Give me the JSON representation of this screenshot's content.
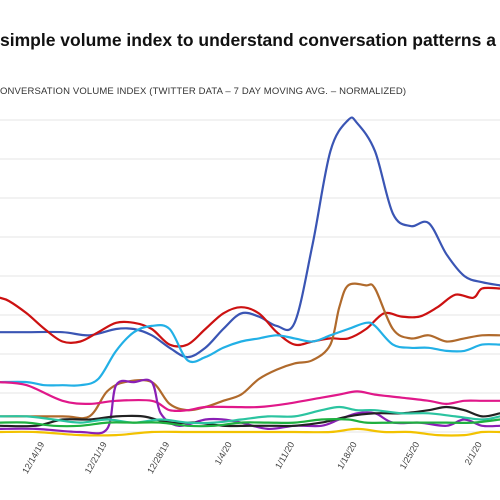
{
  "header": {
    "title": "simple volume index to understand conversation patterns a"
  },
  "chart_data": {
    "type": "line",
    "title": "simple volume index to understand conversation patterns a",
    "subtitle": "ONVERSATION VOLUME INDEX (TWITTER DATA – 7 DAY MOVING AVG. – NORMALIZED)",
    "xlabel": "",
    "ylabel": "",
    "x_start": "12/9/19",
    "x_end": "2/3/20",
    "x_ticks": [
      "12/14/19",
      "12/21/19",
      "12/28/19",
      "1/4/20",
      "1/11/20",
      "1/18/20",
      "1/25/20",
      "2/1/20"
    ],
    "ylim": [
      0,
      100
    ],
    "grid": "horizontal",
    "series": [
      {
        "color": "#3a55b4",
        "points": [
          [
            "12/9/19",
            32
          ],
          [
            "12/12/19",
            32
          ],
          [
            "12/16/19",
            32
          ],
          [
            "12/19/19",
            31
          ],
          [
            "12/22/19",
            33
          ],
          [
            "12/24/19",
            33
          ],
          [
            "12/26/19",
            31
          ],
          [
            "12/28/19",
            27
          ],
          [
            "12/30/19",
            24
          ],
          [
            "1/1/20",
            27
          ],
          [
            "1/3/20",
            33
          ],
          [
            "1/5/20",
            38
          ],
          [
            "1/7/20",
            37
          ],
          [
            "1/9/20",
            34
          ],
          [
            "1/11/20",
            35
          ],
          [
            "1/13/20",
            60
          ],
          [
            "1/15/20",
            90
          ],
          [
            "1/17/20",
            100
          ],
          [
            "1/18/20",
            99
          ],
          [
            "1/20/20",
            90
          ],
          [
            "1/22/20",
            70
          ],
          [
            "1/24/20",
            66
          ],
          [
            "1/26/20",
            67
          ],
          [
            "1/28/20",
            57
          ],
          [
            "1/30/20",
            50
          ],
          [
            "2/1/20",
            48
          ],
          [
            "2/3/20",
            47
          ]
        ]
      },
      {
        "color": "#cc1111",
        "points": [
          [
            "12/9/19",
            43
          ],
          [
            "12/10/19",
            42
          ],
          [
            "12/12/19",
            38
          ],
          [
            "12/14/19",
            33
          ],
          [
            "12/16/19",
            29
          ],
          [
            "12/18/19",
            29
          ],
          [
            "12/20/19",
            32
          ],
          [
            "12/22/19",
            35
          ],
          [
            "12/24/19",
            35
          ],
          [
            "12/26/19",
            33
          ],
          [
            "12/28/19",
            28
          ],
          [
            "12/30/19",
            28
          ],
          [
            "1/1/20",
            33
          ],
          [
            "1/3/20",
            38
          ],
          [
            "1/5/20",
            40
          ],
          [
            "1/7/20",
            38
          ],
          [
            "1/9/20",
            32
          ],
          [
            "1/11/20",
            28
          ],
          [
            "1/13/20",
            29
          ],
          [
            "1/15/20",
            30
          ],
          [
            "1/17/20",
            30
          ],
          [
            "1/19/20",
            33
          ],
          [
            "1/21/20",
            38
          ],
          [
            "1/23/20",
            37
          ],
          [
            "1/25/20",
            37
          ],
          [
            "1/27/20",
            40
          ],
          [
            "1/29/20",
            44
          ],
          [
            "1/31/20",
            43
          ],
          [
            "2/1/20",
            46
          ],
          [
            "2/3/20",
            46
          ]
        ]
      },
      {
        "color": "#b06a2c",
        "points": [
          [
            "12/9/19",
            5
          ],
          [
            "12/16/19",
            5
          ],
          [
            "12/19/19",
            5
          ],
          [
            "12/21/19",
            13
          ],
          [
            "12/23/19",
            16
          ],
          [
            "12/26/19",
            16
          ],
          [
            "12/28/19",
            9
          ],
          [
            "12/30/19",
            7
          ],
          [
            "1/1/20",
            8
          ],
          [
            "1/3/20",
            10
          ],
          [
            "1/5/20",
            12
          ],
          [
            "1/7/20",
            17
          ],
          [
            "1/9/20",
            20
          ],
          [
            "1/11/20",
            22
          ],
          [
            "1/13/20",
            23
          ],
          [
            "1/15/20",
            28
          ],
          [
            "1/16/20",
            40
          ],
          [
            "1/17/20",
            47
          ],
          [
            "1/19/20",
            47
          ],
          [
            "1/20/20",
            46
          ],
          [
            "1/22/20",
            33
          ],
          [
            "1/24/20",
            30
          ],
          [
            "1/26/20",
            31
          ],
          [
            "1/28/20",
            29
          ],
          [
            "1/30/20",
            30
          ],
          [
            "2/1/20",
            31
          ],
          [
            "2/3/20",
            31
          ]
        ]
      },
      {
        "color": "#22b0e6",
        "points": [
          [
            "12/9/19",
            16
          ],
          [
            "12/12/19",
            16
          ],
          [
            "12/14/19",
            15
          ],
          [
            "12/16/19",
            15
          ],
          [
            "12/18/19",
            15
          ],
          [
            "12/20/19",
            17
          ],
          [
            "12/22/19",
            26
          ],
          [
            "12/24/19",
            32
          ],
          [
            "12/26/19",
            34
          ],
          [
            "12/28/19",
            33
          ],
          [
            "12/30/19",
            23
          ],
          [
            "1/1/20",
            24
          ],
          [
            "1/3/20",
            27
          ],
          [
            "1/5/20",
            29
          ],
          [
            "1/7/20",
            30
          ],
          [
            "1/9/20",
            31
          ],
          [
            "1/11/20",
            30
          ],
          [
            "1/13/20",
            29
          ],
          [
            "1/15/20",
            31
          ],
          [
            "1/17/20",
            33
          ],
          [
            "1/19/20",
            35
          ],
          [
            "1/20/20",
            34
          ],
          [
            "1/22/20",
            28
          ],
          [
            "1/24/20",
            27
          ],
          [
            "1/26/20",
            27
          ],
          [
            "1/28/20",
            26
          ],
          [
            "1/30/20",
            26
          ],
          [
            "2/1/20",
            28
          ],
          [
            "2/3/20",
            28
          ]
        ]
      },
      {
        "color": "#e0188a",
        "points": [
          [
            "12/9/19",
            16
          ],
          [
            "12/12/19",
            15
          ],
          [
            "12/16/19",
            10
          ],
          [
            "12/19/19",
            9
          ],
          [
            "12/22/19",
            10
          ],
          [
            "12/26/19",
            10
          ],
          [
            "12/28/19",
            7
          ],
          [
            "12/30/19",
            7
          ],
          [
            "1/1/20",
            8
          ],
          [
            "1/4/20",
            8
          ],
          [
            "1/7/20",
            8
          ],
          [
            "1/10/20",
            9
          ],
          [
            "1/14/20",
            11
          ],
          [
            "1/16/20",
            12
          ],
          [
            "1/18/20",
            13
          ],
          [
            "1/20/20",
            12
          ],
          [
            "1/23/20",
            11
          ],
          [
            "1/26/20",
            10
          ],
          [
            "1/28/20",
            9
          ],
          [
            "1/30/20",
            10
          ],
          [
            "2/1/20",
            10
          ],
          [
            "2/3/20",
            10
          ]
        ]
      },
      {
        "color": "#8a1fb5",
        "points": [
          [
            "12/9/19",
            1
          ],
          [
            "12/13/19",
            1
          ],
          [
            "12/18/19",
            0
          ],
          [
            "12/21/19",
            1
          ],
          [
            "12/22/19",
            15
          ],
          [
            "12/24/19",
            16
          ],
          [
            "12/26/19",
            16
          ],
          [
            "12/27/19",
            6
          ],
          [
            "12/29/19",
            2
          ],
          [
            "1/1/20",
            4
          ],
          [
            "1/3/20",
            4
          ],
          [
            "1/5/20",
            3
          ],
          [
            "1/8/20",
            1
          ],
          [
            "1/11/20",
            2
          ],
          [
            "1/14/20",
            2
          ],
          [
            "1/16/20",
            4
          ],
          [
            "1/18/20",
            6
          ],
          [
            "1/20/20",
            6
          ],
          [
            "1/22/20",
            3
          ],
          [
            "1/25/20",
            3
          ],
          [
            "1/28/20",
            2
          ],
          [
            "1/30/20",
            4
          ],
          [
            "2/1/20",
            2
          ],
          [
            "2/3/20",
            2
          ]
        ]
      },
      {
        "color": "#222222",
        "points": [
          [
            "12/9/19",
            2
          ],
          [
            "12/13/19",
            2
          ],
          [
            "12/16/19",
            4
          ],
          [
            "12/19/19",
            4
          ],
          [
            "12/22/19",
            5
          ],
          [
            "12/25/19",
            5
          ],
          [
            "12/28/19",
            3
          ],
          [
            "12/31/19",
            3
          ],
          [
            "1/3/20",
            2
          ],
          [
            "1/6/20",
            2
          ],
          [
            "1/9/20",
            2
          ],
          [
            "1/11/20",
            2
          ],
          [
            "1/14/20",
            3
          ],
          [
            "1/17/20",
            5
          ],
          [
            "1/20/20",
            6
          ],
          [
            "1/23/20",
            6
          ],
          [
            "1/26/20",
            7
          ],
          [
            "1/28/20",
            8
          ],
          [
            "1/30/20",
            7
          ],
          [
            "2/1/20",
            5
          ],
          [
            "2/3/20",
            6
          ]
        ]
      },
      {
        "color": "#2bc4a0",
        "points": [
          [
            "12/9/19",
            5
          ],
          [
            "12/12/19",
            5
          ],
          [
            "12/15/19",
            4
          ],
          [
            "12/18/19",
            3
          ],
          [
            "12/21/19",
            4
          ],
          [
            "12/24/19",
            3
          ],
          [
            "12/27/19",
            4
          ],
          [
            "12/30/19",
            3
          ],
          [
            "1/2/20",
            3
          ],
          [
            "1/5/20",
            4
          ],
          [
            "1/8/20",
            5
          ],
          [
            "1/11/20",
            5
          ],
          [
            "1/14/20",
            7
          ],
          [
            "1/16/20",
            8
          ],
          [
            "1/18/20",
            7
          ],
          [
            "1/20/20",
            7
          ],
          [
            "1/23/20",
            6
          ],
          [
            "1/26/20",
            6
          ],
          [
            "1/29/20",
            5
          ],
          [
            "2/1/20",
            4
          ],
          [
            "2/3/20",
            5
          ]
        ]
      },
      {
        "color": "#1fb040",
        "points": [
          [
            "12/9/19",
            3
          ],
          [
            "12/12/19",
            3
          ],
          [
            "12/15/19",
            2
          ],
          [
            "12/18/19",
            2
          ],
          [
            "12/21/19",
            3
          ],
          [
            "12/24/19",
            3
          ],
          [
            "12/27/19",
            3
          ],
          [
            "12/30/19",
            2
          ],
          [
            "1/2/20",
            2
          ],
          [
            "1/5/20",
            3
          ],
          [
            "1/8/20",
            3
          ],
          [
            "1/11/20",
            3
          ],
          [
            "1/14/20",
            4
          ],
          [
            "1/17/20",
            4
          ],
          [
            "1/19/20",
            3
          ],
          [
            "1/22/20",
            3
          ],
          [
            "1/25/20",
            3
          ],
          [
            "1/28/20",
            3
          ],
          [
            "1/31/20",
            3
          ],
          [
            "2/3/20",
            4
          ]
        ]
      },
      {
        "color": "#f2c200",
        "points": [
          [
            "12/9/19",
            0
          ],
          [
            "12/13/19",
            0
          ],
          [
            "12/18/19",
            -1
          ],
          [
            "12/22/19",
            -1
          ],
          [
            "12/26/19",
            0
          ],
          [
            "12/30/19",
            0
          ],
          [
            "1/3/20",
            0
          ],
          [
            "1/7/20",
            0
          ],
          [
            "1/11/20",
            0
          ],
          [
            "1/15/20",
            0
          ],
          [
            "1/18/20",
            1
          ],
          [
            "1/21/20",
            0
          ],
          [
            "1/24/20",
            0
          ],
          [
            "1/27/20",
            -1
          ],
          [
            "1/30/20",
            -1
          ],
          [
            "2/1/20",
            0
          ],
          [
            "2/3/20",
            0
          ]
        ]
      }
    ]
  }
}
